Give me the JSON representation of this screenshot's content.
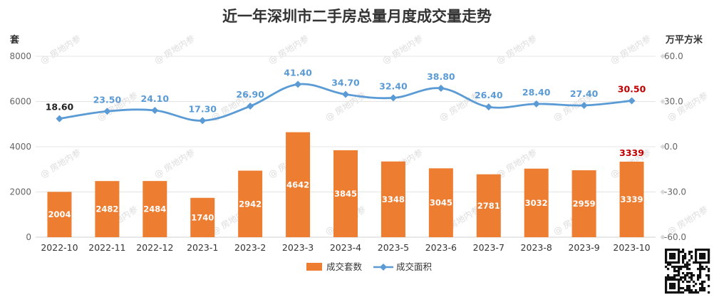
{
  "chart_data": {
    "type": "bar",
    "title": "近一年深圳市二手房总量月度成交量走势",
    "left_axis_unit": "套",
    "right_axis_unit": "万平方米",
    "categories": [
      "2022-10",
      "2022-11",
      "2022-12",
      "2023-1",
      "2023-2",
      "2023-3",
      "2023-4",
      "2023-5",
      "2023-6",
      "2023-7",
      "2023-8",
      "2023-9",
      "2023-10"
    ],
    "series": [
      {
        "name": "成交套数",
        "type": "bar",
        "axis": "left",
        "color": "#ed7d31",
        "values": [
          2004,
          2482,
          2484,
          1740,
          2942,
          4642,
          3845,
          3348,
          3045,
          2781,
          3032,
          2959,
          3339
        ],
        "labels": [
          "2004",
          "2482",
          "2484",
          "1740",
          "2942",
          "4642",
          "3845",
          "3348",
          "3045",
          "2781",
          "3032",
          "2959",
          "3339"
        ]
      },
      {
        "name": "成交面积",
        "type": "line",
        "axis": "right",
        "color": "#5b9bd5",
        "values": [
          18.6,
          23.5,
          24.1,
          17.3,
          26.9,
          41.4,
          34.7,
          32.4,
          38.8,
          26.4,
          28.4,
          27.4,
          30.5
        ],
        "labels": [
          "18.60",
          "23.50",
          "24.10",
          "17.30",
          "26.90",
          "41.40",
          "34.70",
          "32.40",
          "38.80",
          "26.40",
          "28.40",
          "27.40",
          "30.50"
        ]
      }
    ],
    "left_axis": {
      "min": 0,
      "max": 8000,
      "ticks": [
        "0",
        "2000",
        "4000",
        "6000",
        "8000"
      ]
    },
    "right_axis": {
      "min": -60,
      "max": 60,
      "ticks": [
        "-60.0",
        "-30.0",
        "0.0",
        "30.0",
        "60.0"
      ]
    },
    "grid": true,
    "legend_position": "bottom",
    "highlight_color": "#c00000",
    "first_label_color": "#222222",
    "watermark": "房地内参"
  }
}
